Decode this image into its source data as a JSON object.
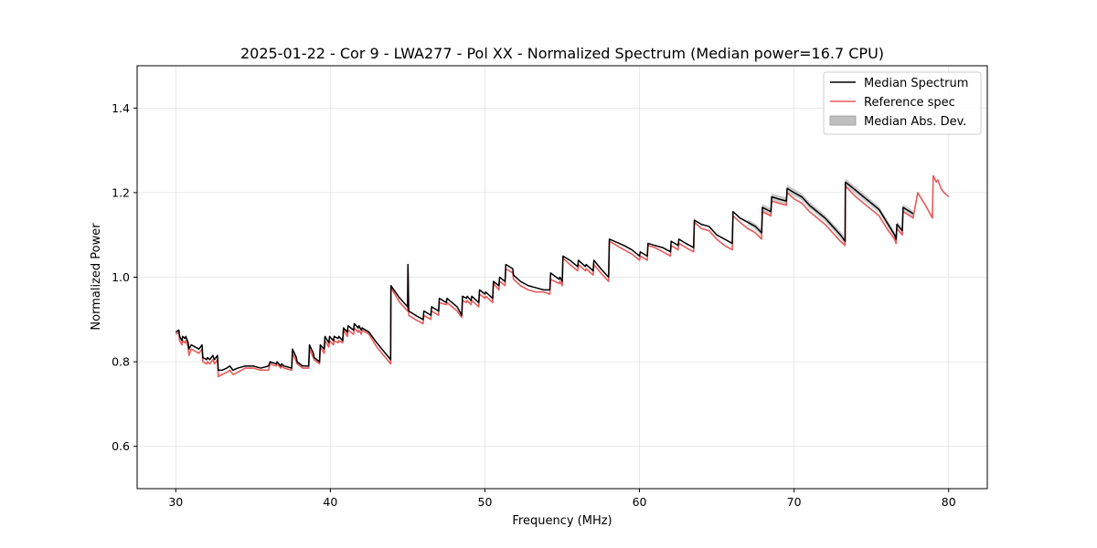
{
  "chart_data": {
    "type": "line",
    "title": "2025-01-22 - Cor 9 - LWA277 - Pol XX - Normalized Spectrum (Median power=16.7 CPU)",
    "xlabel": "Frequency (MHz)",
    "ylabel": "Normalized Power",
    "xlim": [
      27.5,
      82.5
    ],
    "ylim": [
      0.5,
      1.5
    ],
    "xticks": [
      30,
      40,
      50,
      60,
      70,
      80
    ],
    "yticks": [
      0.6,
      0.8,
      1.0,
      1.2,
      1.4
    ],
    "xtick_labels": [
      "30",
      "40",
      "50",
      "60",
      "70",
      "80"
    ],
    "ytick_labels": [
      "0.6",
      "0.8",
      "1.0",
      "1.2",
      "1.4"
    ],
    "grid": true,
    "legend_position": "top-right",
    "colors": {
      "median": "#000000",
      "reference": "#e8595a",
      "mad": "#bfbfbf"
    },
    "series": [
      {
        "name": "Median Spectrum",
        "x": [
          30.0,
          30.2,
          30.25,
          30.4,
          30.45,
          30.6,
          30.65,
          30.8,
          30.85,
          31.0,
          31.5,
          31.7,
          31.75,
          32.0,
          32.05,
          32.2,
          32.3,
          32.4,
          32.5,
          32.6,
          32.7,
          32.75,
          33.0,
          33.3,
          33.5,
          33.7,
          34.0,
          34.5,
          35.0,
          35.5,
          36.0,
          36.1,
          36.5,
          36.55,
          36.8,
          36.85,
          37.0,
          37.5,
          37.55,
          37.8,
          37.85,
          38.2,
          38.6,
          38.65,
          38.9,
          38.95,
          39.3,
          39.35,
          39.6,
          39.65,
          39.9,
          39.95,
          40.2,
          40.25,
          40.5,
          40.55,
          40.8,
          40.85,
          41.1,
          41.15,
          41.5,
          41.55,
          41.8,
          41.85,
          42.0,
          42.05,
          42.5,
          43.0,
          43.9,
          43.92,
          44.5,
          45.0,
          45.02,
          45.07,
          45.5,
          46.0,
          46.05,
          46.5,
          46.55,
          47.0,
          47.05,
          47.5,
          47.55,
          48.2,
          48.5,
          48.55,
          48.8,
          48.85,
          49.1,
          49.15,
          49.6,
          49.65,
          50.0,
          50.05,
          50.5,
          50.55,
          50.9,
          50.95,
          51.3,
          51.35,
          51.8,
          51.85,
          52.3,
          52.8,
          53.3,
          53.8,
          54.2,
          54.25,
          54.8,
          54.85,
          55.0,
          55.05,
          55.5,
          56.0,
          56.05,
          56.5,
          56.55,
          57.0,
          57.05,
          57.5,
          58.0,
          58.05,
          59.0,
          59.5,
          60.0,
          60.05,
          60.5,
          60.55,
          61.0,
          61.5,
          62.0,
          62.05,
          62.5,
          62.55,
          63.0,
          63.5,
          63.55,
          64.0,
          64.5,
          65.0,
          65.5,
          66.0,
          66.05,
          66.5,
          67.0,
          67.5,
          67.9,
          67.95,
          68.5,
          68.55,
          69.0,
          69.5,
          69.55,
          70.0,
          70.5,
          71.0,
          71.5,
          72.0,
          72.5,
          73.0,
          73.3,
          73.32,
          74.0,
          74.5,
          75.0,
          75.5,
          76.0,
          76.5,
          76.6,
          76.65,
          77.0,
          77.05,
          77.5,
          77.7
        ],
        "values": [
          0.87,
          0.875,
          0.86,
          0.85,
          0.86,
          0.855,
          0.86,
          0.845,
          0.83,
          0.84,
          0.83,
          0.84,
          0.81,
          0.805,
          0.81,
          0.805,
          0.81,
          0.815,
          0.805,
          0.81,
          0.815,
          0.78,
          0.78,
          0.785,
          0.79,
          0.78,
          0.785,
          0.79,
          0.79,
          0.785,
          0.79,
          0.8,
          0.795,
          0.8,
          0.79,
          0.795,
          0.79,
          0.785,
          0.83,
          0.81,
          0.8,
          0.79,
          0.79,
          0.84,
          0.82,
          0.81,
          0.8,
          0.84,
          0.83,
          0.86,
          0.845,
          0.86,
          0.85,
          0.86,
          0.855,
          0.86,
          0.85,
          0.88,
          0.87,
          0.885,
          0.875,
          0.89,
          0.88,
          0.885,
          0.875,
          0.88,
          0.87,
          0.845,
          0.805,
          0.98,
          0.95,
          0.93,
          1.03,
          0.92,
          0.91,
          0.9,
          0.92,
          0.91,
          0.93,
          0.92,
          0.95,
          0.94,
          0.95,
          0.93,
          0.91,
          0.955,
          0.95,
          0.955,
          0.945,
          0.955,
          0.94,
          0.97,
          0.96,
          0.965,
          0.95,
          0.99,
          0.98,
          1.0,
          0.99,
          1.03,
          1.02,
          1.005,
          0.99,
          0.98,
          0.975,
          0.97,
          0.97,
          1.01,
          0.995,
          1.0,
          0.99,
          1.05,
          1.04,
          1.025,
          1.04,
          1.025,
          1.03,
          1.015,
          1.04,
          1.02,
          1.0,
          1.09,
          1.075,
          1.065,
          1.05,
          1.06,
          1.05,
          1.08,
          1.075,
          1.07,
          1.06,
          1.085,
          1.075,
          1.09,
          1.08,
          1.07,
          1.135,
          1.125,
          1.12,
          1.1,
          1.09,
          1.08,
          1.155,
          1.14,
          1.13,
          1.12,
          1.105,
          1.165,
          1.155,
          1.19,
          1.185,
          1.18,
          1.21,
          1.2,
          1.19,
          1.17,
          1.155,
          1.14,
          1.12,
          1.1,
          1.085,
          1.225,
          1.205,
          1.19,
          1.175,
          1.16,
          1.13,
          1.1,
          1.09,
          1.125,
          1.11,
          1.165,
          1.155,
          1.15
        ]
      },
      {
        "name": "Reference spec",
        "x": [
          30.0,
          30.2,
          30.25,
          30.4,
          30.45,
          30.6,
          30.65,
          30.8,
          30.85,
          31.0,
          31.5,
          31.7,
          31.75,
          32.0,
          32.05,
          32.2,
          32.3,
          32.4,
          32.5,
          32.6,
          32.7,
          32.75,
          33.0,
          33.3,
          33.5,
          33.7,
          34.0,
          34.5,
          35.0,
          35.5,
          36.0,
          36.1,
          36.5,
          36.55,
          36.8,
          36.85,
          37.0,
          37.5,
          37.55,
          37.8,
          37.85,
          38.2,
          38.6,
          38.65,
          38.9,
          38.95,
          39.3,
          39.35,
          39.6,
          39.65,
          39.9,
          39.95,
          40.2,
          40.25,
          40.5,
          40.55,
          40.8,
          40.85,
          41.1,
          41.15,
          41.5,
          41.55,
          41.8,
          41.85,
          42.0,
          42.05,
          42.5,
          43.0,
          43.9,
          43.92,
          44.5,
          45.0,
          45.02,
          45.07,
          45.5,
          46.0,
          46.05,
          46.5,
          46.55,
          47.0,
          47.05,
          47.5,
          47.55,
          48.2,
          48.5,
          48.55,
          48.8,
          48.85,
          49.1,
          49.15,
          49.6,
          49.65,
          50.0,
          50.05,
          50.5,
          50.55,
          50.9,
          50.95,
          51.3,
          51.35,
          51.8,
          51.85,
          52.3,
          52.8,
          53.3,
          53.8,
          54.2,
          54.25,
          54.8,
          54.85,
          55.0,
          55.05,
          55.5,
          56.0,
          56.05,
          56.5,
          56.55,
          57.0,
          57.05,
          57.5,
          58.0,
          58.05,
          59.0,
          59.5,
          60.0,
          60.05,
          60.5,
          60.55,
          61.0,
          61.5,
          62.0,
          62.05,
          62.5,
          62.55,
          63.0,
          63.5,
          63.55,
          64.0,
          64.5,
          65.0,
          65.5,
          66.0,
          66.05,
          66.5,
          67.0,
          67.5,
          67.9,
          67.95,
          68.5,
          68.55,
          69.0,
          69.5,
          69.55,
          70.0,
          70.5,
          71.0,
          71.5,
          72.0,
          72.5,
          73.0,
          73.3,
          73.32,
          74.0,
          74.5,
          75.0,
          75.5,
          76.0,
          76.5,
          76.6,
          76.65,
          77.0,
          77.05,
          77.5,
          77.7,
          78.0,
          78.5,
          78.95,
          79.0,
          79.2,
          79.3,
          79.5,
          79.7,
          80.0
        ],
        "values": [
          0.865,
          0.87,
          0.85,
          0.84,
          0.85,
          0.845,
          0.85,
          0.835,
          0.815,
          0.83,
          0.82,
          0.83,
          0.8,
          0.795,
          0.8,
          0.795,
          0.8,
          0.805,
          0.795,
          0.8,
          0.805,
          0.765,
          0.77,
          0.775,
          0.78,
          0.77,
          0.775,
          0.785,
          0.785,
          0.78,
          0.78,
          0.795,
          0.79,
          0.795,
          0.785,
          0.79,
          0.785,
          0.78,
          0.82,
          0.8,
          0.795,
          0.785,
          0.785,
          0.83,
          0.81,
          0.805,
          0.795,
          0.835,
          0.82,
          0.85,
          0.835,
          0.85,
          0.84,
          0.85,
          0.845,
          0.85,
          0.845,
          0.875,
          0.86,
          0.875,
          0.865,
          0.88,
          0.87,
          0.875,
          0.865,
          0.875,
          0.865,
          0.835,
          0.795,
          0.975,
          0.94,
          0.92,
          1.02,
          0.91,
          0.9,
          0.89,
          0.91,
          0.9,
          0.92,
          0.91,
          0.94,
          0.935,
          0.94,
          0.92,
          0.905,
          0.945,
          0.94,
          0.945,
          0.935,
          0.945,
          0.93,
          0.96,
          0.95,
          0.955,
          0.94,
          0.985,
          0.97,
          0.99,
          0.98,
          1.02,
          1.01,
          0.995,
          0.98,
          0.97,
          0.965,
          0.965,
          0.96,
          0.995,
          0.985,
          0.99,
          0.98,
          1.045,
          1.03,
          1.015,
          1.03,
          1.015,
          1.02,
          1.005,
          1.03,
          1.01,
          0.99,
          1.085,
          1.065,
          1.055,
          1.04,
          1.05,
          1.04,
          1.075,
          1.07,
          1.06,
          1.05,
          1.075,
          1.065,
          1.08,
          1.07,
          1.06,
          1.13,
          1.115,
          1.11,
          1.09,
          1.075,
          1.065,
          1.145,
          1.13,
          1.115,
          1.105,
          1.09,
          1.155,
          1.145,
          1.18,
          1.175,
          1.17,
          1.2,
          1.185,
          1.175,
          1.155,
          1.14,
          1.125,
          1.105,
          1.085,
          1.075,
          1.215,
          1.19,
          1.175,
          1.16,
          1.145,
          1.115,
          1.09,
          1.08,
          1.115,
          1.1,
          1.155,
          1.145,
          1.14,
          1.2,
          1.17,
          1.14,
          1.24,
          1.225,
          1.23,
          1.21,
          1.2,
          1.19
        ]
      },
      {
        "name": "Median Abs. Dev.",
        "x": [
          67.0,
          68.0,
          69.5,
          71.0,
          72.5,
          73.3,
          74.5,
          76.0,
          77.0,
          77.7
        ],
        "values": [
          0.006,
          0.008,
          0.009,
          0.008,
          0.008,
          0.009,
          0.008,
          0.008,
          0.008,
          0.007
        ]
      }
    ]
  }
}
